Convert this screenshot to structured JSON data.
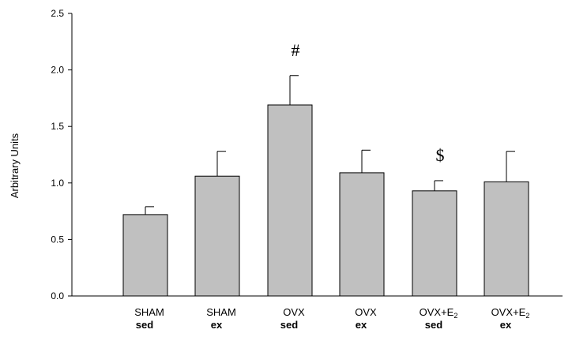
{
  "chart_data": {
    "type": "bar",
    "categories": [
      {
        "line1": "SHAM",
        "subscript": "",
        "line2": "sed"
      },
      {
        "line1": "SHAM",
        "subscript": "",
        "line2": "ex"
      },
      {
        "line1": "OVX",
        "subscript": "",
        "line2": "sed"
      },
      {
        "line1": "OVX",
        "subscript": "",
        "line2": "ex"
      },
      {
        "line1": "OVX+E",
        "subscript": "2",
        "line2": "sed"
      },
      {
        "line1": "OVX+E",
        "subscript": "2",
        "line2": "ex"
      }
    ],
    "values": [
      0.72,
      1.06,
      1.69,
      1.09,
      0.93,
      1.01
    ],
    "error_upper": [
      0.07,
      0.22,
      0.26,
      0.2,
      0.09,
      0.27
    ],
    "annotations": [
      {
        "category_index": 2,
        "text": "#"
      },
      {
        "category_index": 4,
        "text": "$"
      }
    ],
    "title": "",
    "xlabel": "",
    "ylabel": "Arbitrary Units",
    "ylim": [
      0,
      2.5
    ],
    "yticks": [
      0,
      0.5,
      1,
      1.5,
      2,
      2.5
    ],
    "ytick_labels": [
      "0.0",
      "0.5",
      "1.0",
      "1.5",
      "2.0",
      "2.5"
    ],
    "grid": false,
    "bar_color": "#c0c0c0",
    "edge_color": "#000000"
  }
}
